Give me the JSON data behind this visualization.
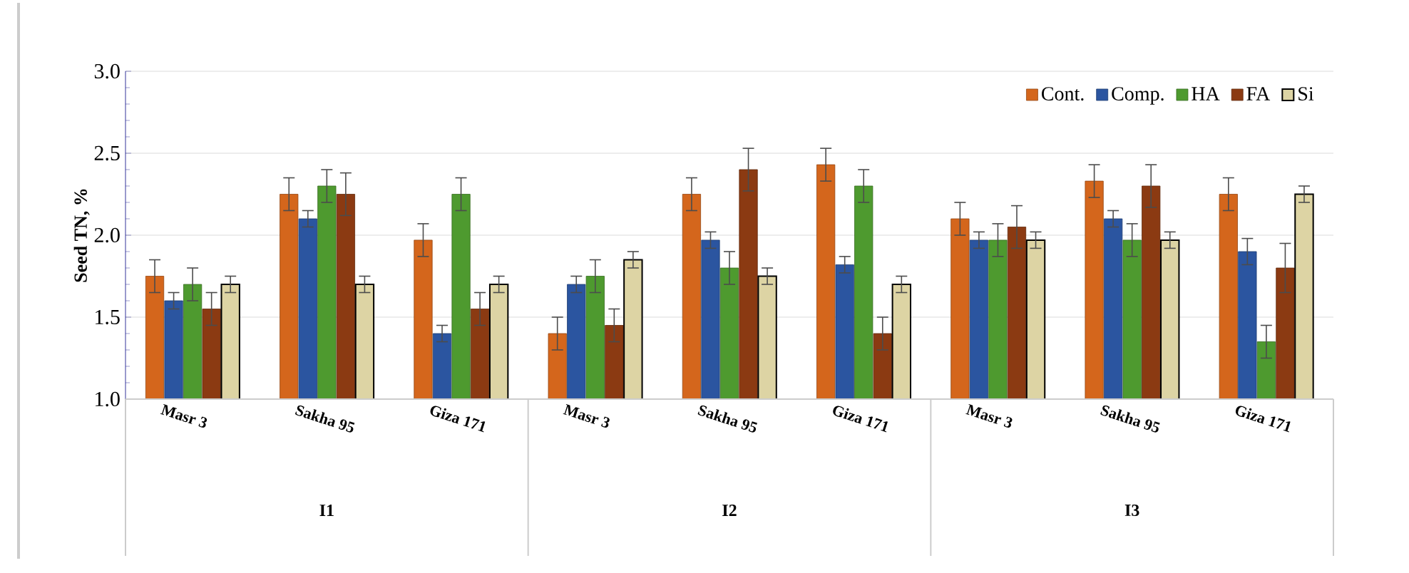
{
  "chart_data": {
    "type": "bar",
    "ylabel": "Seed TN, %",
    "categories": [
      "Masr 3",
      "Sakha 95",
      "Giza 171",
      "Masr 3",
      "Sakha 95",
      "Giza 171",
      "Masr 3",
      "Sakha 95",
      "Giza 171"
    ],
    "annotations": [
      "I1",
      "I2",
      "I3"
    ],
    "series": [
      {
        "name": "Cont.",
        "color": "#d4661c",
        "values": [
          1.75,
          2.25,
          1.97,
          1.4,
          2.25,
          2.43,
          2.1,
          2.33,
          2.25
        ],
        "errors": [
          0.1,
          0.1,
          0.1,
          0.1,
          0.1,
          0.1,
          0.1,
          0.1,
          0.1
        ]
      },
      {
        "name": "Comp.",
        "color": "#2b55a0",
        "values": [
          1.6,
          2.1,
          1.4,
          1.7,
          1.97,
          1.82,
          1.97,
          2.1,
          1.9
        ],
        "errors": [
          0.05,
          0.05,
          0.05,
          0.05,
          0.05,
          0.05,
          0.05,
          0.05,
          0.08
        ]
      },
      {
        "name": "HA",
        "color": "#4e9a2f",
        "values": [
          1.7,
          2.3,
          2.25,
          1.75,
          1.8,
          2.3,
          1.97,
          1.97,
          1.35
        ],
        "errors": [
          0.1,
          0.1,
          0.1,
          0.1,
          0.1,
          0.1,
          0.1,
          0.1,
          0.1
        ]
      },
      {
        "name": "FA",
        "color": "#8b3a12",
        "values": [
          1.55,
          2.25,
          1.55,
          1.45,
          2.4,
          1.4,
          2.05,
          2.3,
          1.8
        ],
        "errors": [
          0.1,
          0.13,
          0.1,
          0.1,
          0.13,
          0.1,
          0.13,
          0.13,
          0.15
        ]
      },
      {
        "name": "Si",
        "color": "#ddd4a4",
        "values": [
          1.7,
          1.7,
          1.7,
          1.85,
          1.75,
          1.7,
          1.97,
          1.97,
          2.25
        ],
        "errors": [
          0.05,
          0.05,
          0.05,
          0.05,
          0.05,
          0.05,
          0.05,
          0.05,
          0.05
        ]
      }
    ],
    "ylim": [
      1.0,
      3.0
    ],
    "yticks": [
      {
        "value": 1.0,
        "label": "1.0"
      },
      {
        "value": 1.5,
        "label": "1.5"
      },
      {
        "value": 2.0,
        "label": "2.0"
      },
      {
        "value": 2.5,
        "label": "2.5"
      },
      {
        "value": 3.0,
        "label": "3.0"
      }
    ],
    "grid": "y",
    "legend": "top right"
  }
}
